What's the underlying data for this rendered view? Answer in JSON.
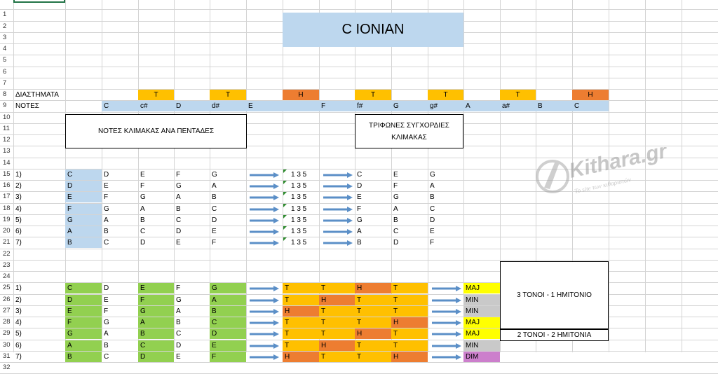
{
  "row_numbers": [
    "1",
    "2",
    "3",
    "4",
    "5",
    "6",
    "7",
    "8",
    "9",
    "10",
    "11",
    "12",
    "13",
    "14",
    "15",
    "16",
    "17",
    "18",
    "19",
    "20",
    "21",
    "22",
    "23",
    "24",
    "25",
    "26",
    "27",
    "28",
    "29",
    "30",
    "31",
    "32"
  ],
  "title": "C IONIAN",
  "labels": {
    "intervals": "ΔΙΑΣΤΗΜΑΤΑ",
    "notes": "ΝΟΤΕΣ"
  },
  "intervals_row": [
    "T",
    "T",
    "H",
    "T",
    "T",
    "T",
    "H"
  ],
  "notes_row": [
    "C",
    "c#",
    "D",
    "d#",
    "E",
    "",
    "F",
    "f#",
    "G",
    "g#",
    "A",
    "a#",
    "B",
    "C"
  ],
  "pentad_header": "ΝΟΤΕΣ ΚΛΙΜΑΚΑΣ ΑΝΑ ΠΕΝΤΑΔΕΣ",
  "triad_header_line1": "ΤΡΙΦΩΝΕΣ ΣΥΓΧΟΡΔΙΕΣ",
  "triad_header_line2": "ΚΛΙΜΑΚΑΣ",
  "degrees": [
    "1)",
    "2)",
    "3)",
    "4)",
    "5)",
    "6)",
    "7)"
  ],
  "pentads": [
    [
      "C",
      "D",
      "E",
      "F",
      "G"
    ],
    [
      "D",
      "E",
      "F",
      "G",
      "A"
    ],
    [
      "E",
      "F",
      "G",
      "A",
      "B"
    ],
    [
      "F",
      "G",
      "A",
      "B",
      "C"
    ],
    [
      "G",
      "A",
      "B",
      "C",
      "D"
    ],
    [
      "A",
      "B",
      "C",
      "D",
      "E"
    ],
    [
      "B",
      "C",
      "D",
      "E",
      "F"
    ]
  ],
  "formula": "1 3 5",
  "triads": [
    [
      "C",
      "E",
      "G"
    ],
    [
      "D",
      "F",
      "A"
    ],
    [
      "E",
      "G",
      "B"
    ],
    [
      "F",
      "A",
      "C"
    ],
    [
      "G",
      "B",
      "D"
    ],
    [
      "A",
      "C",
      "E"
    ],
    [
      "B",
      "D",
      "F"
    ]
  ],
  "steps": [
    [
      "T",
      "T",
      "H",
      "T"
    ],
    [
      "T",
      "H",
      "T",
      "T"
    ],
    [
      "H",
      "T",
      "T",
      "T"
    ],
    [
      "T",
      "T",
      "T",
      "H"
    ],
    [
      "T",
      "T",
      "H",
      "T"
    ],
    [
      "T",
      "H",
      "T",
      "T"
    ],
    [
      "H",
      "T",
      "T",
      "H"
    ]
  ],
  "qualities": [
    "MAJ",
    "MIN",
    "MIN",
    "MAJ",
    "MAJ",
    "MIN",
    "DIM"
  ],
  "summary_major": "3 ΤΟΝΟΙ - 1 ΗΜΙΤΟΝΙΟ",
  "summary_dim": "2 ΤΟΝΟΙ - 2 ΗΜΙΤΟΝΙΑ",
  "watermark": {
    "name": "Kithara.gr",
    "tagline": "Το site των κιθαριστών"
  },
  "colors": {
    "tone": "#ffc000",
    "half": "#ed7d31",
    "note_blue": "#bdd7ee",
    "root_green": "#92d050",
    "arrow": "#5b8fc7",
    "maj": "#ffff00",
    "min": "#c9c9c9",
    "dim": "#cc7fcc"
  }
}
